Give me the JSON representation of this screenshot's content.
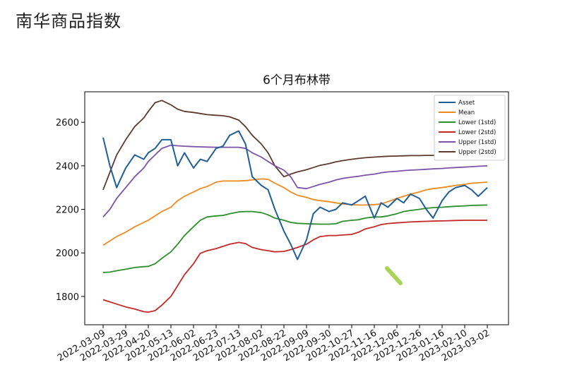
{
  "page": {
    "heading": "南华商品指数"
  },
  "chart_data": {
    "type": "line",
    "title": "6个月布林带",
    "xlabel": "",
    "ylabel": "",
    "ylim": [
      1670,
      2740
    ],
    "yticks": [
      1800,
      2000,
      2200,
      2400,
      2600
    ],
    "xticks": [
      "2022-03-09",
      "2022-03-29",
      "2022-04-20",
      "2022-05-13",
      "2022-06-02",
      "2022-06-23",
      "2022-07-13",
      "2022-08-02",
      "2022-08-22",
      "2022-09-09",
      "2022-09-30",
      "2022-10-27",
      "2022-11-16",
      "2022-12-06",
      "2022-12-26",
      "2023-01-16",
      "2023-02-10",
      "2023-03-02"
    ],
    "legend_position": "top-right",
    "grid": false,
    "x_index": [
      0,
      0.3,
      0.6,
      1,
      1.4,
      1.8,
      2,
      2.3,
      2.6,
      3,
      3.3,
      3.6,
      4,
      4.3,
      4.6,
      5,
      5.3,
      5.6,
      6,
      6.3,
      6.6,
      7,
      7.3,
      7.6,
      8,
      8.3,
      8.6,
      9,
      9.3,
      9.6,
      10,
      10.3,
      10.6,
      11,
      11.3,
      11.6,
      12,
      12.3,
      12.6,
      13,
      13.3,
      13.6,
      14,
      14.3,
      14.6,
      15,
      15.3,
      15.6,
      16,
      16.3,
      16.6,
      17
    ],
    "series": [
      {
        "name": "Asset",
        "color": "#1f5f96",
        "values": [
          2530,
          2400,
          2300,
          2390,
          2450,
          2430,
          2460,
          2480,
          2520,
          2520,
          2400,
          2460,
          2390,
          2430,
          2420,
          2480,
          2490,
          2540,
          2560,
          2500,
          2350,
          2310,
          2290,
          2200,
          2100,
          2040,
          1970,
          2060,
          2180,
          2210,
          2190,
          2200,
          2230,
          2220,
          2240,
          2260,
          2160,
          2230,
          2210,
          2250,
          2230,
          2270,
          2250,
          2200,
          2160,
          2240,
          2280,
          2300,
          2310,
          2290,
          2260,
          2300
        ]
      },
      {
        "name": "Mean",
        "color": "#ef8a1f",
        "values": [
          2035,
          2055,
          2075,
          2095,
          2120,
          2140,
          2150,
          2170,
          2190,
          2210,
          2240,
          2260,
          2280,
          2295,
          2305,
          2325,
          2330,
          2330,
          2330,
          2332,
          2335,
          2340,
          2338,
          2320,
          2300,
          2280,
          2265,
          2255,
          2245,
          2240,
          2235,
          2230,
          2225,
          2222,
          2220,
          2220,
          2222,
          2225,
          2235,
          2250,
          2260,
          2270,
          2280,
          2290,
          2295,
          2300,
          2305,
          2310,
          2315,
          2320,
          2322,
          2325
        ]
      },
      {
        "name": "Lower (1std)",
        "color": "#2b8f2b",
        "values": [
          1910,
          1912,
          1918,
          1925,
          1933,
          1937,
          1938,
          1950,
          1975,
          2005,
          2040,
          2080,
          2120,
          2150,
          2165,
          2170,
          2172,
          2180,
          2188,
          2190,
          2190,
          2185,
          2175,
          2160,
          2150,
          2140,
          2136,
          2134,
          2133,
          2132,
          2132,
          2134,
          2145,
          2150,
          2152,
          2160,
          2165,
          2165,
          2170,
          2180,
          2190,
          2195,
          2200,
          2205,
          2208,
          2210,
          2212,
          2214,
          2216,
          2218,
          2219,
          2220
        ]
      },
      {
        "name": "Lower (2std)",
        "color": "#c62828",
        "values": [
          1785,
          1775,
          1765,
          1752,
          1742,
          1730,
          1728,
          1735,
          1760,
          1800,
          1850,
          1900,
          1950,
          1998,
          2010,
          2020,
          2030,
          2040,
          2048,
          2043,
          2025,
          2015,
          2010,
          2005,
          2007,
          2015,
          2025,
          2040,
          2060,
          2075,
          2080,
          2080,
          2082,
          2085,
          2095,
          2110,
          2120,
          2130,
          2135,
          2138,
          2140,
          2142,
          2144,
          2145,
          2146,
          2147,
          2148,
          2149,
          2150,
          2150,
          2150,
          2150
        ]
      },
      {
        "name": "Upper (1std)",
        "color": "#7d52a8",
        "values": [
          2165,
          2200,
          2250,
          2300,
          2350,
          2390,
          2420,
          2450,
          2480,
          2495,
          2492,
          2490,
          2488,
          2487,
          2486,
          2485,
          2485,
          2485,
          2485,
          2480,
          2460,
          2440,
          2420,
          2400,
          2380,
          2350,
          2300,
          2295,
          2305,
          2315,
          2325,
          2335,
          2342,
          2348,
          2352,
          2357,
          2362,
          2368,
          2372,
          2375,
          2378,
          2380,
          2382,
          2384,
          2386,
          2388,
          2390,
          2392,
          2394,
          2396,
          2398,
          2400
        ]
      },
      {
        "name": "Upper (2std)",
        "color": "#5c3a2e",
        "values": [
          2290,
          2370,
          2450,
          2520,
          2580,
          2620,
          2650,
          2690,
          2700,
          2680,
          2660,
          2650,
          2645,
          2640,
          2635,
          2632,
          2630,
          2625,
          2610,
          2580,
          2540,
          2500,
          2460,
          2400,
          2350,
          2362,
          2372,
          2382,
          2392,
          2402,
          2410,
          2418,
          2424,
          2430,
          2434,
          2437,
          2440,
          2442,
          2444,
          2445,
          2446,
          2447,
          2447,
          2448,
          2448,
          2449,
          2449,
          2450,
          2450,
          2450,
          2450,
          2450
        ]
      }
    ]
  }
}
